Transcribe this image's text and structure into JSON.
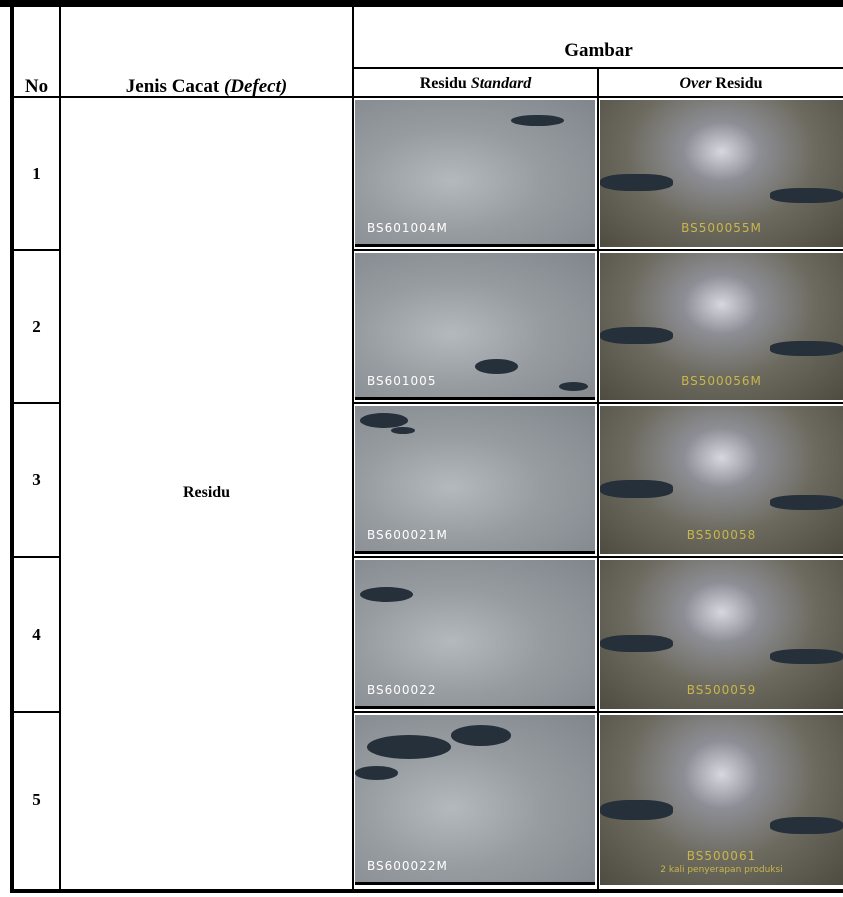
{
  "header": {
    "no": "No",
    "defect_label": "Jenis Cacat",
    "defect_term": "(Defect)",
    "image_group": "Gambar",
    "standard_a": "Residu",
    "standard_b": "Standard",
    "over_a": "Over",
    "over_b": "Residu"
  },
  "table": {
    "defect": "Residu",
    "rows": [
      {
        "no": "1",
        "standard_code": "BS601004M",
        "over_code": "BS500055M"
      },
      {
        "no": "2",
        "standard_code": "BS601005",
        "over_code": "BS500056M"
      },
      {
        "no": "3",
        "standard_code": "BS600021M",
        "over_code": "BS500058"
      },
      {
        "no": "4",
        "standard_code": "BS600022",
        "over_code": "BS500059"
      },
      {
        "no": "5",
        "standard_code": "BS600022M",
        "over_code": "BS500061",
        "over_note": "2 kali penyerapan produksi"
      }
    ]
  }
}
